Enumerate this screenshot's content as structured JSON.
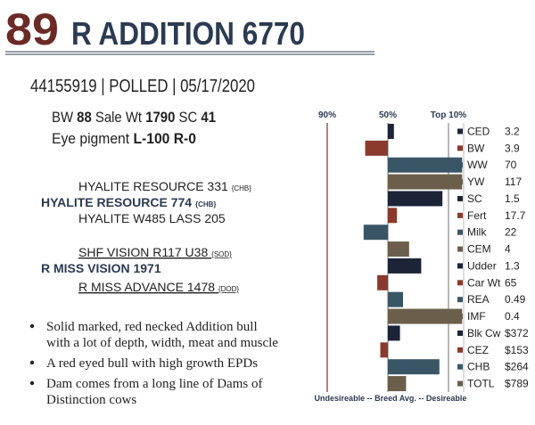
{
  "header": {
    "lot": "89",
    "name": "R ADDITION 6770",
    "id_line": "44155919 | POLLED | 05/17/2020"
  },
  "details": {
    "stats": [
      {
        "label": "BW",
        "value": "88"
      },
      {
        "label": "Sale Wt",
        "value": "1790"
      },
      {
        "label": "SC",
        "value": "41"
      }
    ],
    "eye": {
      "label": "Eye pigment",
      "value": "L-100 R-0"
    }
  },
  "pedigree": [
    {
      "name": "HYALITE RESOURCE 331",
      "tag": "{CHB}"
    },
    {
      "name": "HYALITE RESOURCE 774",
      "tag": "{CHB}"
    },
    {
      "name": "HYALITE W485 LASS 205"
    },
    {
      "name": "SHF VISION R117 U38",
      "tag": "{SOD}"
    },
    {
      "name": "R MISS VISION 1971"
    },
    {
      "name": "R MISS ADVANCE 1478",
      "tag": "{DOD}"
    }
  ],
  "bullets": [
    "Solid marked, red necked Addition bull with a lot of depth, width, meat and muscle",
    "A red eyed bull with high growth EPDs",
    "Dam comes from a long line of Dams of Distinction cows"
  ],
  "chart_data": {
    "type": "bar",
    "orientation": "horizontal",
    "xlabel": "Undesireable -- Breed Avg. --  Desireable",
    "xlim": [
      100,
      0
    ],
    "xticks": [
      {
        "value": 90,
        "label": "90%"
      },
      {
        "value": 50,
        "label": "50%"
      },
      {
        "value": 10,
        "label": "Top 10%"
      }
    ],
    "baseline": 50,
    "categories": [
      "CED",
      "BW",
      "WW",
      "YW",
      "SC",
      "Fert",
      "Milk",
      "CEM",
      "Udder",
      "Car Wt",
      "REA",
      "IMF",
      "Blk Cw",
      "CEZ",
      "CHB",
      "TOTL"
    ],
    "values": [
      46,
      65,
      1,
      1,
      14,
      44,
      66,
      36,
      28,
      57,
      40,
      1,
      42,
      55,
      16,
      38
    ],
    "epds": [
      "3.2",
      "3.9",
      "70",
      "117",
      "1.5",
      "17.7",
      "22",
      "4",
      "1.3",
      "65",
      "0.49",
      "0.4",
      "$372",
      "$153",
      "$264",
      "$789"
    ],
    "colors": [
      "#1d2437",
      "#8a3a2c",
      "#3a5666",
      "#6b5f4c",
      "#1d2437",
      "#8a3a2c",
      "#3a5666",
      "#6b5f4c",
      "#1d2437",
      "#8a3a2c",
      "#3a5666",
      "#6b5f4c",
      "#1d2437",
      "#8a3a2c",
      "#3a5666",
      "#6b5f4c"
    ]
  }
}
